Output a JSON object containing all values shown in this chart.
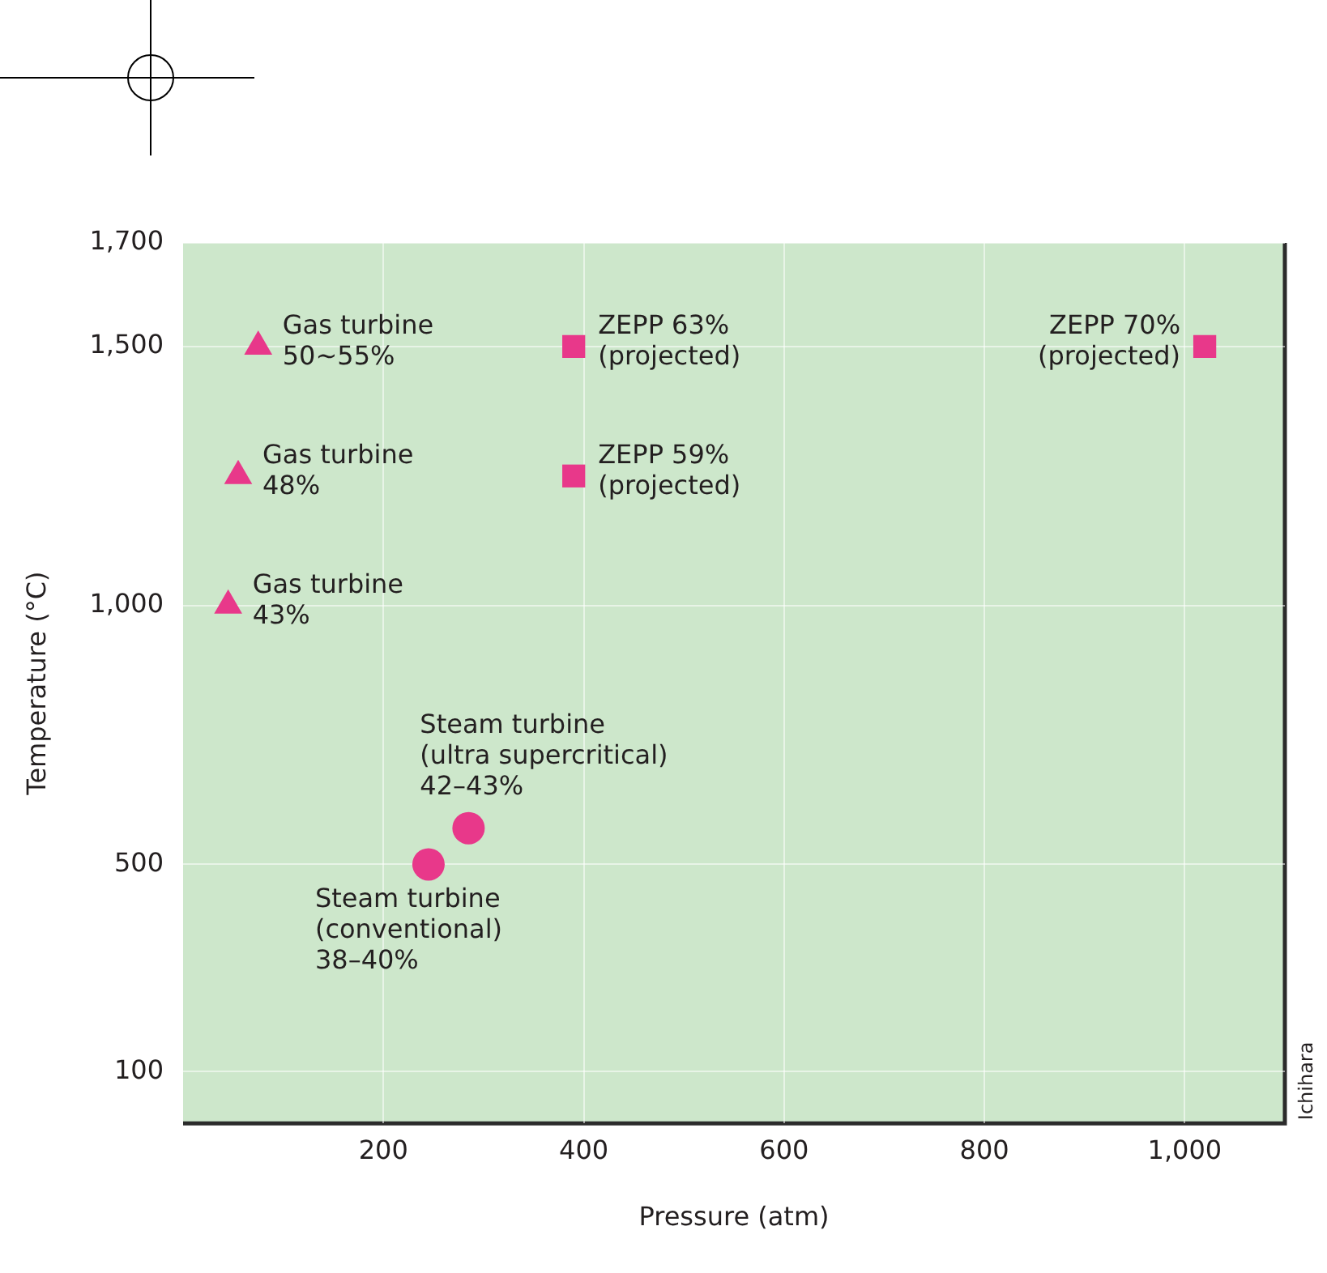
{
  "chart_data": {
    "type": "scatter",
    "xlabel": "Pressure (atm)",
    "ylabel": "Temperature (°C)",
    "xlim": [
      0,
      1100
    ],
    "xticks": [
      200,
      400,
      600,
      800,
      {
        "value": 1000,
        "label": "1,000"
      }
    ],
    "ylim": [
      0,
      1700
    ],
    "yticks": [
      100,
      500,
      {
        "value": 1000,
        "label": "1,000"
      },
      {
        "value": 1500,
        "label": "1,500"
      },
      {
        "value": 1700,
        "label": "1,700"
      }
    ],
    "grid": true,
    "legend": false,
    "series": [
      {
        "color": "#e8388a",
        "marker": "triangle",
        "x": [
          75,
          55,
          45
        ],
        "values": [
          1500,
          1250,
          1000
        ]
      },
      {
        "color": "#e8388a",
        "marker": "square",
        "x": [
          390,
          390,
          1020
        ],
        "values": [
          1500,
          1250,
          1500
        ]
      },
      {
        "color": "#e8388a",
        "marker": "circle",
        "x": [
          285,
          245
        ],
        "values": [
          570,
          500
        ]
      }
    ],
    "annotations": [
      {
        "text": "Gas turbine\n50~55%",
        "x": 75,
        "y": 1500
      },
      {
        "text": "Gas turbine\n48%",
        "x": 55,
        "y": 1250
      },
      {
        "text": "Gas turbine\n43%",
        "x": 45,
        "y": 1000
      },
      {
        "text": "ZEPP 63%\n(projected)",
        "x": 390,
        "y": 1500
      },
      {
        "text": "ZEPP 59%\n(projected)",
        "x": 390,
        "y": 1250
      },
      {
        "text": "ZEPP 70%\n(projected)",
        "x": 1020,
        "y": 1500
      },
      {
        "text": "Steam turbine\n(ultra supercritical)\n42–43%",
        "x": 285,
        "y": 570
      },
      {
        "text": "Steam turbine\n(conventional)\n38–40%",
        "x": 245,
        "y": 500
      },
      "Ichihara"
    ]
  }
}
